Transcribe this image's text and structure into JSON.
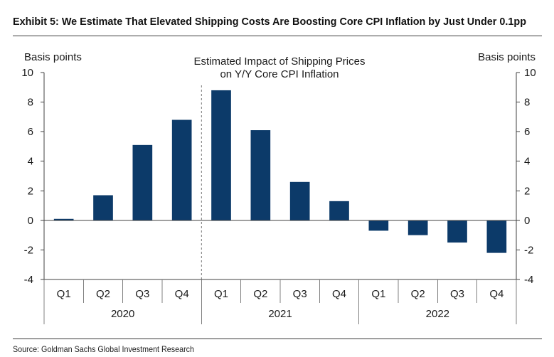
{
  "exhibit": {
    "title": "Exhibit 5: We Estimate That Elevated Shipping Costs Are Boosting Core CPI Inflation by Just Under 0.1pp",
    "source": "Source: Goldman Sachs Global Investment Research"
  },
  "chart_data": {
    "type": "bar",
    "title_lines": [
      "Estimated Impact of Shipping Prices",
      "on Y/Y Core CPI Inflation"
    ],
    "ylabel": "Basis points",
    "ylabel_right": "Basis points",
    "ylim": [
      -4,
      10
    ],
    "yticks": [
      10,
      8,
      6,
      4,
      2,
      0,
      -2,
      -4
    ],
    "grid": false,
    "category_groups": [
      {
        "label": "2020",
        "categories": [
          "Q1",
          "Q2",
          "Q3",
          "Q4"
        ]
      },
      {
        "label": "2021",
        "categories": [
          "Q1",
          "Q2",
          "Q3",
          "Q4"
        ],
        "dashed_divider_before": true
      },
      {
        "label": "2022",
        "categories": [
          "Q1",
          "Q2",
          "Q3",
          "Q4"
        ]
      }
    ],
    "values": [
      0.1,
      1.7,
      5.1,
      6.8,
      8.8,
      6.1,
      2.6,
      1.3,
      -0.7,
      -1.0,
      -1.5,
      -2.2
    ],
    "bar_color": "#0c3a69"
  }
}
